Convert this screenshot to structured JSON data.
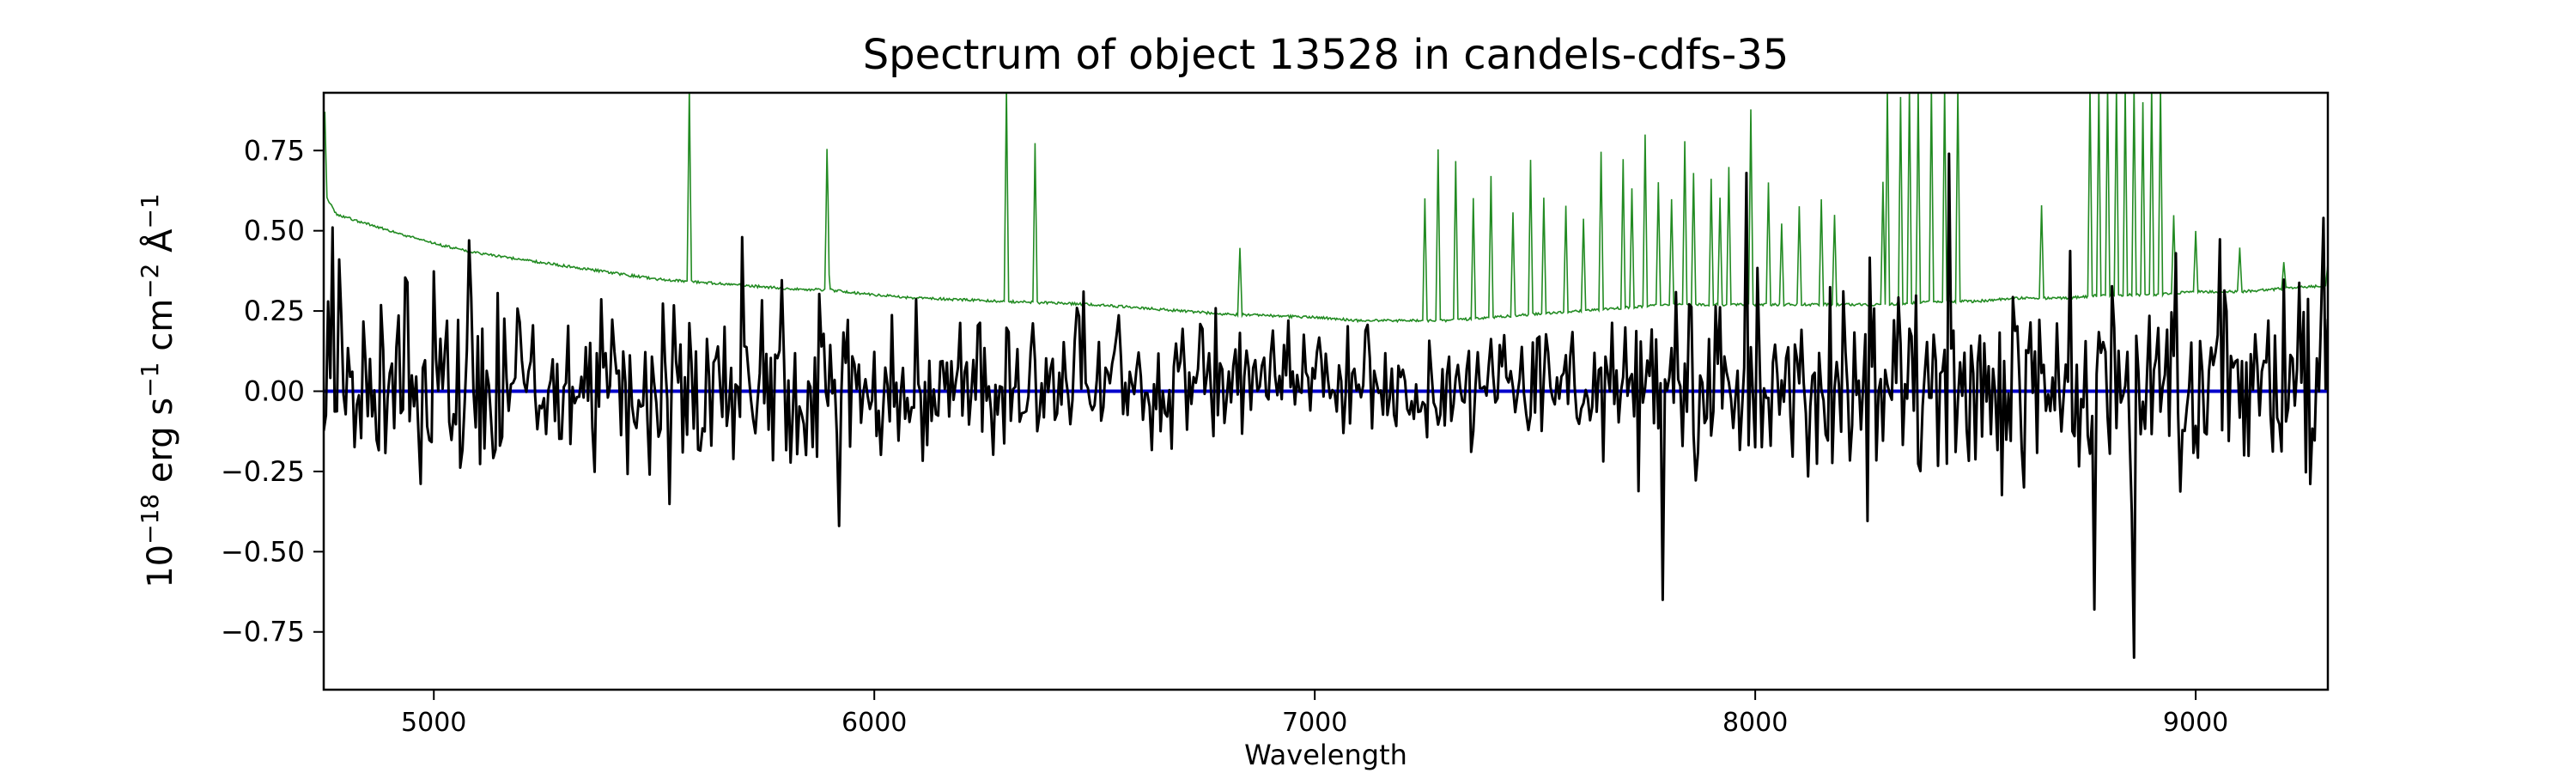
{
  "chart_data": {
    "type": "line",
    "title": "Spectrum of object 13528 in candels-cdfs-35",
    "xlabel": "Wavelength",
    "ylabel": {
      "base": "10",
      "exp": "−18",
      "unit1": " erg s",
      "exp1": "−1",
      "unit2": " cm",
      "exp2": "−2",
      "unit3": " Å",
      "exp3": "−1"
    },
    "xlim": [
      4750,
      9300
    ],
    "ylim": [
      -0.93,
      0.93
    ],
    "xticks": [
      5000,
      6000,
      7000,
      8000,
      9000
    ],
    "xtick_labels": [
      "5000",
      "6000",
      "7000",
      "8000",
      "9000"
    ],
    "yticks": [
      -0.75,
      -0.5,
      -0.25,
      0.0,
      0.25,
      0.5,
      0.75
    ],
    "ytick_labels": [
      "−0.75",
      "−0.50",
      "−0.25",
      "0.00",
      "0.25",
      "0.50",
      "0.75"
    ],
    "colors": {
      "spectrum": "#000000",
      "error": "#228b22",
      "zero": "#0000cc"
    },
    "series": [
      {
        "role": "error",
        "color": "#228b22",
        "baseline": [
          [
            4750,
            0.62
          ],
          [
            4780,
            0.55
          ],
          [
            4900,
            0.5
          ],
          [
            5000,
            0.46
          ],
          [
            5100,
            0.43
          ],
          [
            5200,
            0.41
          ],
          [
            5300,
            0.39
          ],
          [
            5400,
            0.37
          ],
          [
            5500,
            0.35
          ],
          [
            5600,
            0.34
          ],
          [
            5700,
            0.33
          ],
          [
            5800,
            0.32
          ],
          [
            5900,
            0.315
          ],
          [
            6000,
            0.3
          ],
          [
            6100,
            0.29
          ],
          [
            6200,
            0.285
          ],
          [
            6300,
            0.28
          ],
          [
            6400,
            0.275
          ],
          [
            6500,
            0.27
          ],
          [
            6600,
            0.26
          ],
          [
            6700,
            0.25
          ],
          [
            6800,
            0.24
          ],
          [
            6900,
            0.235
          ],
          [
            7000,
            0.23
          ],
          [
            7100,
            0.22
          ],
          [
            7200,
            0.22
          ],
          [
            7300,
            0.22
          ],
          [
            7400,
            0.23
          ],
          [
            7500,
            0.24
          ],
          [
            7600,
            0.25
          ],
          [
            7700,
            0.26
          ],
          [
            7800,
            0.27
          ],
          [
            7900,
            0.27
          ],
          [
            8000,
            0.27
          ],
          [
            8100,
            0.27
          ],
          [
            8200,
            0.27
          ],
          [
            8300,
            0.27
          ],
          [
            8400,
            0.28
          ],
          [
            8500,
            0.28
          ],
          [
            8600,
            0.29
          ],
          [
            8700,
            0.29
          ],
          [
            8800,
            0.3
          ],
          [
            8900,
            0.3
          ],
          [
            9000,
            0.31
          ],
          [
            9100,
            0.31
          ],
          [
            9200,
            0.32
          ],
          [
            9300,
            0.33
          ]
        ],
        "peaks": [
          [
            4752,
            0.9
          ],
          [
            5580,
            0.95
          ],
          [
            5893,
            0.8
          ],
          [
            6300,
            0.95
          ],
          [
            6365,
            0.77
          ],
          [
            6830,
            0.45
          ],
          [
            7250,
            0.6
          ],
          [
            7280,
            0.75
          ],
          [
            7320,
            0.72
          ],
          [
            7360,
            0.6
          ],
          [
            7400,
            0.67
          ],
          [
            7450,
            0.56
          ],
          [
            7490,
            0.72
          ],
          [
            7520,
            0.6
          ],
          [
            7570,
            0.58
          ],
          [
            7610,
            0.54
          ],
          [
            7650,
            0.75
          ],
          [
            7700,
            0.72
          ],
          [
            7720,
            0.63
          ],
          [
            7750,
            0.8
          ],
          [
            7780,
            0.65
          ],
          [
            7810,
            0.6
          ],
          [
            7840,
            0.78
          ],
          [
            7860,
            0.68
          ],
          [
            7900,
            0.66
          ],
          [
            7920,
            0.6
          ],
          [
            7940,
            0.7
          ],
          [
            7990,
            0.88
          ],
          [
            8030,
            0.65
          ],
          [
            8060,
            0.52
          ],
          [
            8100,
            0.58
          ],
          [
            8150,
            0.6
          ],
          [
            8180,
            0.55
          ],
          [
            8290,
            0.65
          ],
          [
            8300,
            0.95
          ],
          [
            8330,
            0.92
          ],
          [
            8350,
            0.95
          ],
          [
            8370,
            0.95
          ],
          [
            8400,
            0.95
          ],
          [
            8430,
            0.95
          ],
          [
            8460,
            0.95
          ],
          [
            8650,
            0.58
          ],
          [
            8760,
            0.95
          ],
          [
            8780,
            0.95
          ],
          [
            8800,
            0.95
          ],
          [
            8820,
            0.95
          ],
          [
            8840,
            0.95
          ],
          [
            8860,
            0.95
          ],
          [
            8880,
            0.9
          ],
          [
            8900,
            0.95
          ],
          [
            8920,
            0.95
          ],
          [
            8950,
            0.55
          ],
          [
            9000,
            0.5
          ],
          [
            9100,
            0.45
          ],
          [
            9200,
            0.4
          ],
          [
            9300,
            0.4
          ]
        ]
      },
      {
        "role": "spectrum",
        "color": "#000000",
        "wavelength_range": [
          4750,
          9300
        ],
        "extremes": [
          [
            4770,
            0.51
          ],
          [
            5080,
            0.47
          ],
          [
            5700,
            0.48
          ],
          [
            5920,
            -0.42
          ],
          [
            7790,
            -0.65
          ],
          [
            7980,
            0.68
          ],
          [
            8440,
            0.74
          ],
          [
            8770,
            -0.68
          ],
          [
            8860,
            -0.83
          ],
          [
            9290,
            0.54
          ]
        ]
      },
      {
        "role": "zero",
        "color": "#0000cc",
        "y": 0
      }
    ]
  }
}
